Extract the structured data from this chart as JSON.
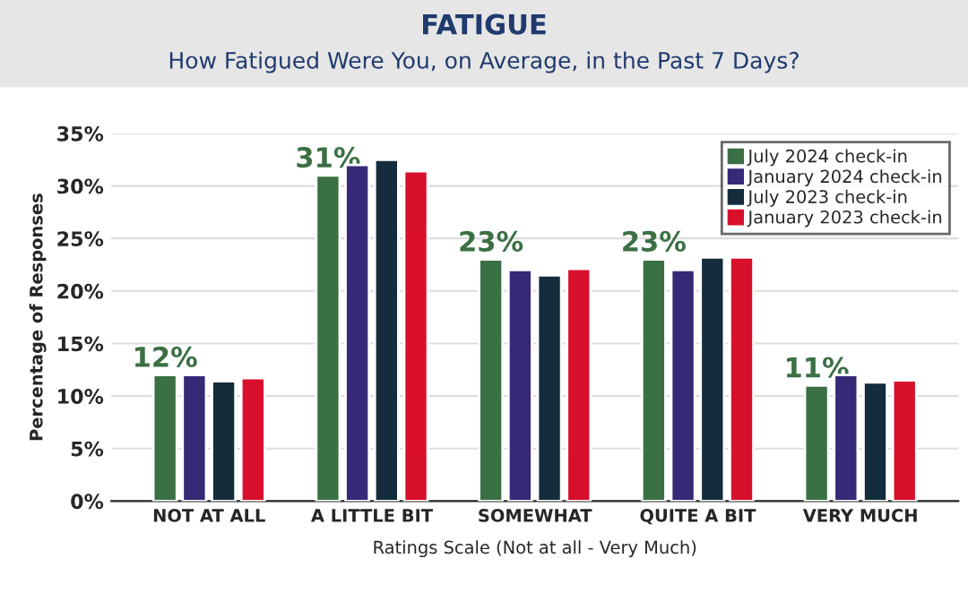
{
  "chart_data": {
    "type": "bar",
    "title": "FATIGUE",
    "subtitle": "How Fatigued Were You, on Average, in the Past 7 Days?",
    "xlabel": "Ratings Scale (Not at all - Very Much)",
    "ylabel": "Percentage of Responses",
    "categories": [
      "NOT AT ALL",
      "A LITTLE BIT",
      "SOMEWHAT",
      "QUITE A BIT",
      "VERY MUCH"
    ],
    "series": [
      {
        "name": "July 2024 check-in",
        "color": "#3a7044",
        "values": [
          12,
          31,
          23,
          23,
          11
        ],
        "value_labels": [
          "12%",
          "31%",
          "23%",
          "23%",
          "11%"
        ]
      },
      {
        "name": "January 2024 check-in",
        "color": "#382878",
        "values": [
          12,
          32,
          22,
          22,
          12
        ]
      },
      {
        "name": "July 2023 check-in",
        "color": "#142c3c",
        "values": [
          11.4,
          32.5,
          21.5,
          23.2,
          11.3
        ]
      },
      {
        "name": "January 2023 check-in",
        "color": "#d8102c",
        "values": [
          11.7,
          31.4,
          22.1,
          23.2,
          11.5
        ]
      }
    ],
    "ylim": [
      0,
      35
    ],
    "yticks": [
      {
        "value": 0,
        "label": "0%"
      },
      {
        "value": 5,
        "label": "5%"
      },
      {
        "value": 10,
        "label": "10%"
      },
      {
        "value": 15,
        "label": "15%"
      },
      {
        "value": 20,
        "label": "20%"
      },
      {
        "value": 25,
        "label": "25%"
      },
      {
        "value": 30,
        "label": "30%"
      },
      {
        "value": 35,
        "label": "35%"
      }
    ],
    "grid": "y",
    "legend": "top right"
  }
}
